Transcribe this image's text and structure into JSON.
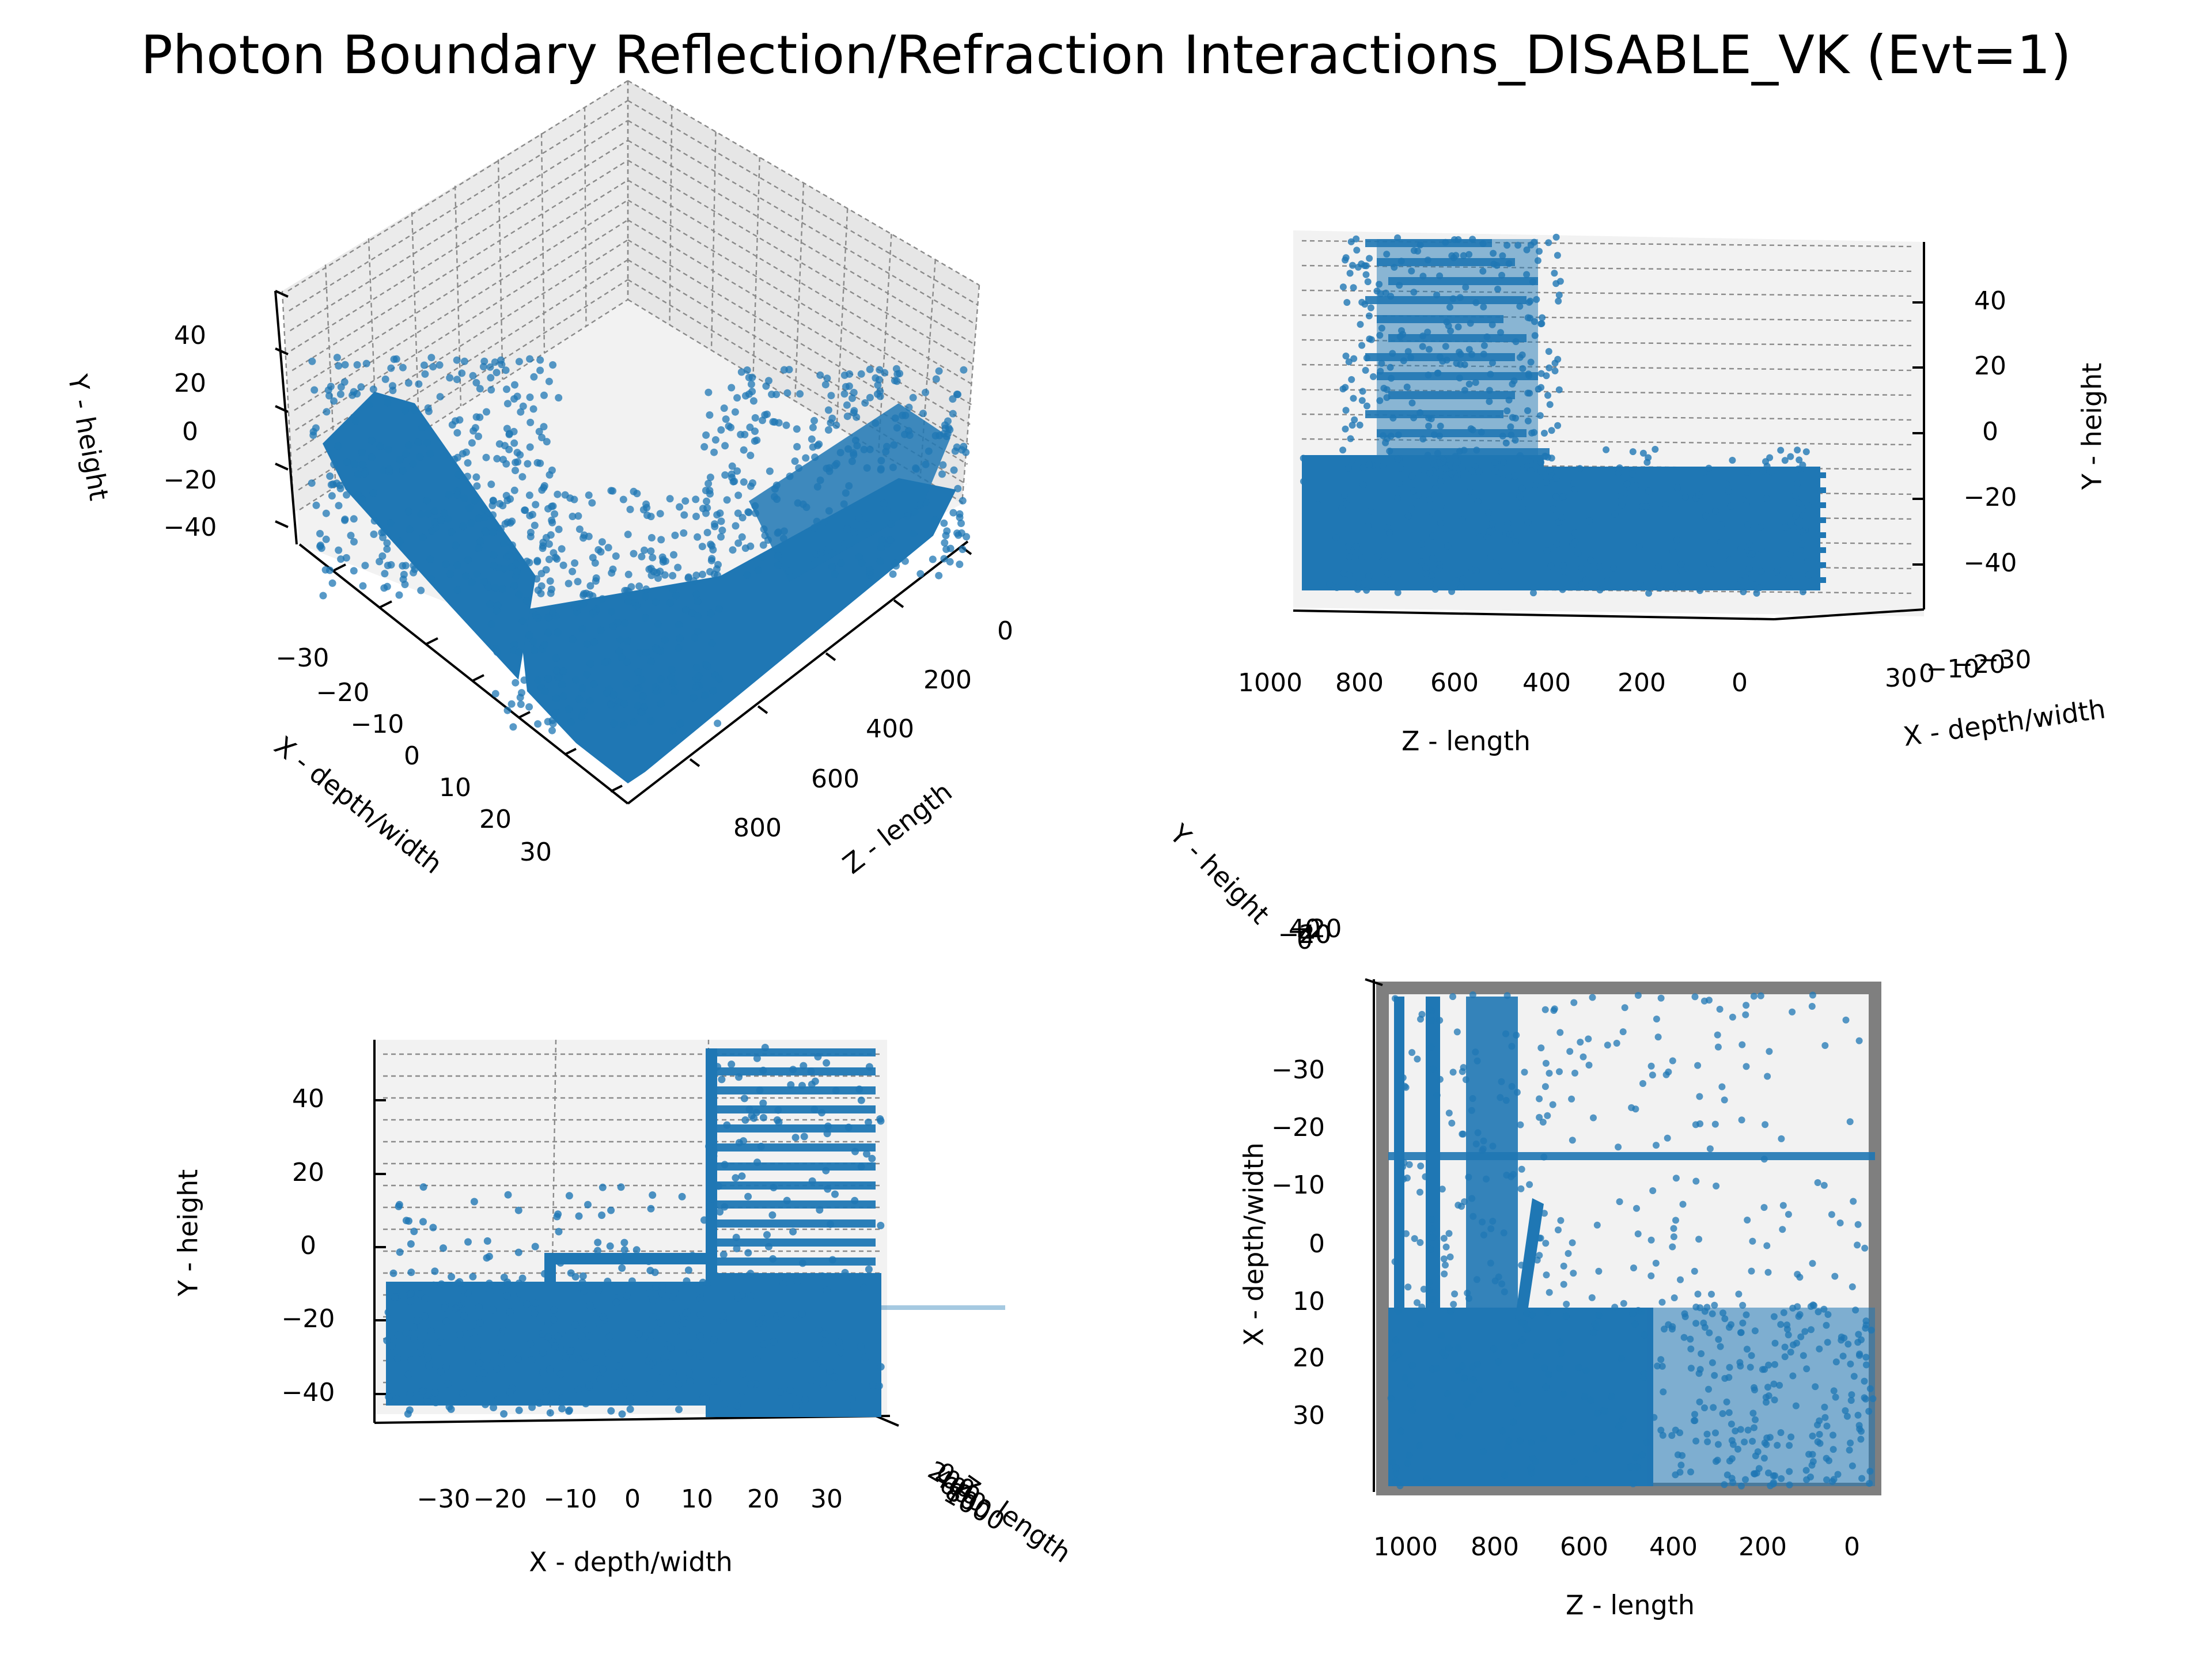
{
  "title": "Photon Boundary Reflection/Refraction Interactions_DISABLE_VK (Evt=1)",
  "colors": {
    "marker": "#1f77b4",
    "pane": "#f2f2f2",
    "grid": "#8a8a8a"
  },
  "chart_data": [
    {
      "type": "scatter",
      "view": "3d-isometric",
      "ylabel": "Y - height",
      "xlabel": "X - depth/width",
      "zlabel": "Z - length",
      "y_ticks": [
        "40",
        "20",
        "0",
        "−20",
        "−40"
      ],
      "x_ticks": [
        "−30",
        "−20",
        "−10",
        "0",
        "10",
        "20",
        "30"
      ],
      "z_ticks": [
        "0",
        "200",
        "400",
        "600",
        "800"
      ],
      "xlim": [
        -35,
        35
      ],
      "ylim": [
        -50,
        50
      ],
      "zlim": [
        0,
        1000
      ],
      "grid": true
    },
    {
      "type": "scatter",
      "view": "side (Z vs Y)",
      "xlabel": "Z - length",
      "ylabel": "Y - height",
      "depth_label": "X - depth/width",
      "z_ticks": [
        "1000",
        "800",
        "600",
        "400",
        "200",
        "0"
      ],
      "y_ticks": [
        "40",
        "20",
        "0",
        "−20",
        "−40"
      ],
      "depth_ticks": [
        "30",
        "0",
        "−10",
        "−20",
        "−30"
      ],
      "xlim": [
        1000,
        0
      ],
      "ylim": [
        -50,
        50
      ],
      "grid": true
    },
    {
      "type": "scatter",
      "view": "front (X vs Y)",
      "xlabel": "X - depth/width",
      "ylabel": "Y - height",
      "depth_label": "Z - length",
      "x_ticks": [
        "−30",
        "−20",
        "−10",
        "0",
        "10",
        "20",
        "30"
      ],
      "y_ticks": [
        "40",
        "20",
        "0",
        "−20",
        "−40"
      ],
      "depth_ticks": [
        "0",
        "200",
        "400",
        "600",
        "800",
        "1000"
      ],
      "xlim": [
        -38,
        38
      ],
      "ylim": [
        -50,
        52
      ],
      "grid": true
    },
    {
      "type": "scatter",
      "view": "top (Z vs X)",
      "xlabel": "Z - length",
      "ylabel": "X - depth/width",
      "depth_label": "Y - height",
      "z_ticks": [
        "1000",
        "800",
        "600",
        "400",
        "200",
        "0"
      ],
      "x_ticks": [
        "−30",
        "−20",
        "−10",
        "0",
        "10",
        "20",
        "30"
      ],
      "depth_ticks": [
        "40",
        "20",
        "0",
        "−20",
        "−40"
      ],
      "xlim": [
        1050,
        0
      ],
      "ylim": [
        -42,
        42
      ],
      "grid": true
    }
  ]
}
